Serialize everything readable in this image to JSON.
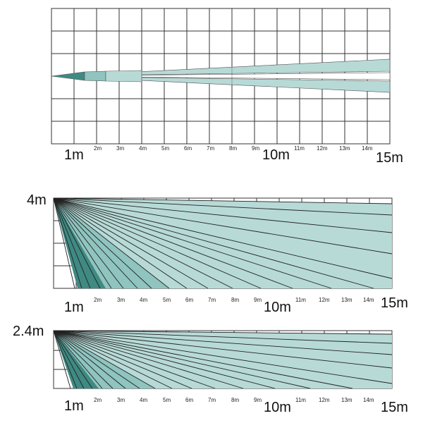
{
  "panels": [
    {
      "id": "top-view",
      "height_label": "",
      "x_labels": {
        "start": "1m",
        "minor": [
          "2m",
          "3m",
          "4m",
          "5m",
          "6m",
          "7m",
          "8m",
          "9m"
        ],
        "middle": "10m",
        "minor2": [
          "11m",
          "12m",
          "13m",
          "14m"
        ],
        "end": "15m"
      }
    },
    {
      "id": "side-view-4m",
      "height_label": "4m",
      "x_labels": {
        "start": "1m",
        "minor": [
          "2m",
          "3m",
          "4m",
          "5m",
          "6m",
          "7m",
          "8m",
          "9m"
        ],
        "middle": "10m",
        "minor2": [
          "11m",
          "12m",
          "13m",
          "14m"
        ],
        "end": "15m"
      }
    },
    {
      "id": "side-view-2.4m",
      "height_label": "2.4m",
      "x_labels": {
        "start": "1m",
        "minor": [
          "2m",
          "3m",
          "4m",
          "5m",
          "6m",
          "7m",
          "8m",
          "9m"
        ],
        "middle": "10m",
        "minor2": [
          "11m",
          "12m",
          "13m",
          "14m"
        ],
        "end": "15m"
      }
    }
  ],
  "colors": {
    "beam_light": "#b7dad7",
    "beam_mid": "#8fc4bf",
    "beam_dark": "#3f8a83",
    "grid": "#333333",
    "line": "#222222"
  }
}
